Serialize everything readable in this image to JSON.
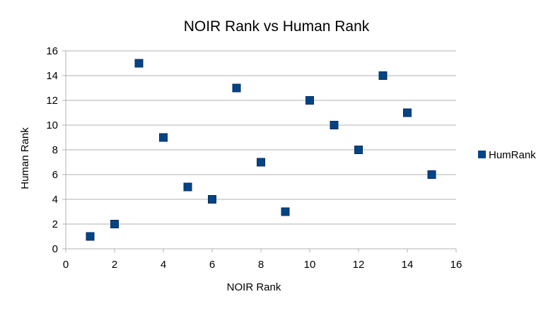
{
  "chart_data": {
    "type": "scatter",
    "title": "NOIR Rank vs Human Rank",
    "xlabel": "NOIR Rank",
    "ylabel": "Human Rank",
    "xlim": [
      0,
      16
    ],
    "ylim": [
      0,
      16
    ],
    "xticks": [
      "0",
      "2",
      "4",
      "6",
      "8",
      "10",
      "12",
      "14",
      "16"
    ],
    "yticks": [
      "0",
      "2",
      "4",
      "6",
      "8",
      "10",
      "12",
      "14",
      "16"
    ],
    "grid": "horizontal",
    "legend_position": "right",
    "series": [
      {
        "name": "HumRank",
        "color": "#004586",
        "marker": "square",
        "x": [
          1,
          2,
          3,
          4,
          5,
          6,
          7,
          8,
          9,
          10,
          11,
          12,
          13,
          14,
          15
        ],
        "y": [
          1,
          2,
          15,
          9,
          5,
          4,
          13,
          7,
          3,
          12,
          10,
          8,
          14,
          11,
          6
        ]
      }
    ]
  }
}
